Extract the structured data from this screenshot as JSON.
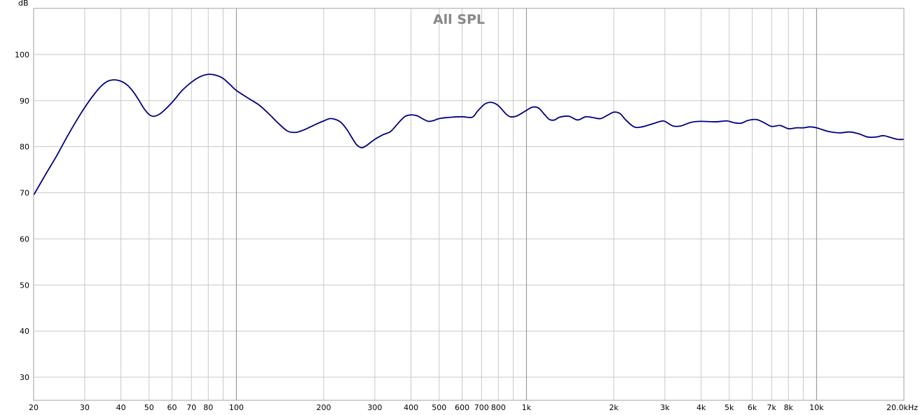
{
  "chart_data": {
    "type": "line",
    "title": "All SPL",
    "ylabel": "dB",
    "xlabel": "",
    "x_scale": "log",
    "xlim": [
      20,
      20000
    ],
    "ylim": [
      25,
      110
    ],
    "grid": true,
    "line_color": "#00007f",
    "x_ticks": [
      {
        "value": 20,
        "label": "20"
      },
      {
        "value": 30,
        "label": "30"
      },
      {
        "value": 40,
        "label": "40"
      },
      {
        "value": 50,
        "label": "50"
      },
      {
        "value": 60,
        "label": "60"
      },
      {
        "value": 70,
        "label": "70"
      },
      {
        "value": 80,
        "label": "80"
      },
      {
        "value": 100,
        "label": "100"
      },
      {
        "value": 200,
        "label": "200"
      },
      {
        "value": 300,
        "label": "300"
      },
      {
        "value": 400,
        "label": "400"
      },
      {
        "value": 500,
        "label": "500"
      },
      {
        "value": 600,
        "label": "600"
      },
      {
        "value": 700,
        "label": "700"
      },
      {
        "value": 800,
        "label": "800"
      },
      {
        "value": 1000,
        "label": "1k"
      },
      {
        "value": 2000,
        "label": "2k"
      },
      {
        "value": 3000,
        "label": "3k"
      },
      {
        "value": 4000,
        "label": "4k"
      },
      {
        "value": 5000,
        "label": "5k"
      },
      {
        "value": 6000,
        "label": "6k"
      },
      {
        "value": 7000,
        "label": "7k"
      },
      {
        "value": 8000,
        "label": "8k"
      },
      {
        "value": 10000,
        "label": "10k"
      },
      {
        "value": 20000,
        "label": "20.0kHz"
      }
    ],
    "x_minor_grid": [
      90,
      900,
      9000
    ],
    "x_major_grid": [
      100,
      1000,
      10000
    ],
    "y_ticks": [
      30,
      40,
      50,
      60,
      70,
      80,
      90,
      100
    ],
    "series": [
      {
        "points": [
          [
            20,
            69.5
          ],
          [
            22,
            74
          ],
          [
            24,
            78
          ],
          [
            26,
            82
          ],
          [
            28,
            85.5
          ],
          [
            30,
            88.5
          ],
          [
            32,
            91
          ],
          [
            34,
            93
          ],
          [
            36,
            94.2
          ],
          [
            38,
            94.5
          ],
          [
            40,
            94.2
          ],
          [
            42,
            93.4
          ],
          [
            44,
            92
          ],
          [
            46,
            90.2
          ],
          [
            48,
            88.3
          ],
          [
            50,
            87
          ],
          [
            52,
            86.6
          ],
          [
            55,
            87.3
          ],
          [
            60,
            89.6
          ],
          [
            65,
            92.2
          ],
          [
            70,
            94
          ],
          [
            75,
            95.2
          ],
          [
            80,
            95.7
          ],
          [
            85,
            95.5
          ],
          [
            90,
            94.8
          ],
          [
            95,
            93.5
          ],
          [
            100,
            92.2
          ],
          [
            110,
            90.5
          ],
          [
            120,
            89
          ],
          [
            130,
            87
          ],
          [
            140,
            85
          ],
          [
            150,
            83.4
          ],
          [
            160,
            83.1
          ],
          [
            170,
            83.6
          ],
          [
            180,
            84.3
          ],
          [
            190,
            85
          ],
          [
            200,
            85.6
          ],
          [
            210,
            86.1
          ],
          [
            220,
            85.9
          ],
          [
            230,
            85.2
          ],
          [
            240,
            83.8
          ],
          [
            250,
            82
          ],
          [
            260,
            80.4
          ],
          [
            270,
            79.8
          ],
          [
            280,
            80.2
          ],
          [
            300,
            81.6
          ],
          [
            320,
            82.6
          ],
          [
            340,
            83.3
          ],
          [
            360,
            85
          ],
          [
            380,
            86.5
          ],
          [
            400,
            86.9
          ],
          [
            420,
            86.7
          ],
          [
            440,
            86
          ],
          [
            460,
            85.5
          ],
          [
            480,
            85.7
          ],
          [
            500,
            86.1
          ],
          [
            550,
            86.4
          ],
          [
            600,
            86.5
          ],
          [
            650,
            86.4
          ],
          [
            680,
            87.8
          ],
          [
            720,
            89.3
          ],
          [
            760,
            89.6
          ],
          [
            800,
            88.9
          ],
          [
            850,
            87.1
          ],
          [
            880,
            86.5
          ],
          [
            920,
            86.6
          ],
          [
            960,
            87.2
          ],
          [
            1000,
            87.9
          ],
          [
            1050,
            88.6
          ],
          [
            1100,
            88.4
          ],
          [
            1150,
            87.1
          ],
          [
            1200,
            85.9
          ],
          [
            1250,
            85.8
          ],
          [
            1300,
            86.4
          ],
          [
            1400,
            86.6
          ],
          [
            1500,
            85.8
          ],
          [
            1600,
            86.5
          ],
          [
            1700,
            86.3
          ],
          [
            1800,
            86.1
          ],
          [
            1900,
            86.8
          ],
          [
            2000,
            87.5
          ],
          [
            2100,
            87.2
          ],
          [
            2200,
            85.8
          ],
          [
            2350,
            84.3
          ],
          [
            2500,
            84.3
          ],
          [
            2700,
            84.9
          ],
          [
            2900,
            85.5
          ],
          [
            3000,
            85.5
          ],
          [
            3200,
            84.5
          ],
          [
            3400,
            84.5
          ],
          [
            3700,
            85.3
          ],
          [
            4000,
            85.5
          ],
          [
            4500,
            85.4
          ],
          [
            4900,
            85.6
          ],
          [
            5200,
            85.2
          ],
          [
            5500,
            85.1
          ],
          [
            5800,
            85.7
          ],
          [
            6200,
            85.9
          ],
          [
            6600,
            85.2
          ],
          [
            7000,
            84.4
          ],
          [
            7500,
            84.6
          ],
          [
            8000,
            83.9
          ],
          [
            8500,
            84.1
          ],
          [
            9000,
            84.1
          ],
          [
            9500,
            84.3
          ],
          [
            10000,
            84.1
          ],
          [
            11000,
            83.3
          ],
          [
            12000,
            83
          ],
          [
            13000,
            83.2
          ],
          [
            14000,
            82.8
          ],
          [
            15000,
            82.1
          ],
          [
            16000,
            82.1
          ],
          [
            17000,
            82.4
          ],
          [
            18000,
            82
          ],
          [
            19000,
            81.6
          ],
          [
            20000,
            81.6
          ]
        ]
      }
    ]
  }
}
